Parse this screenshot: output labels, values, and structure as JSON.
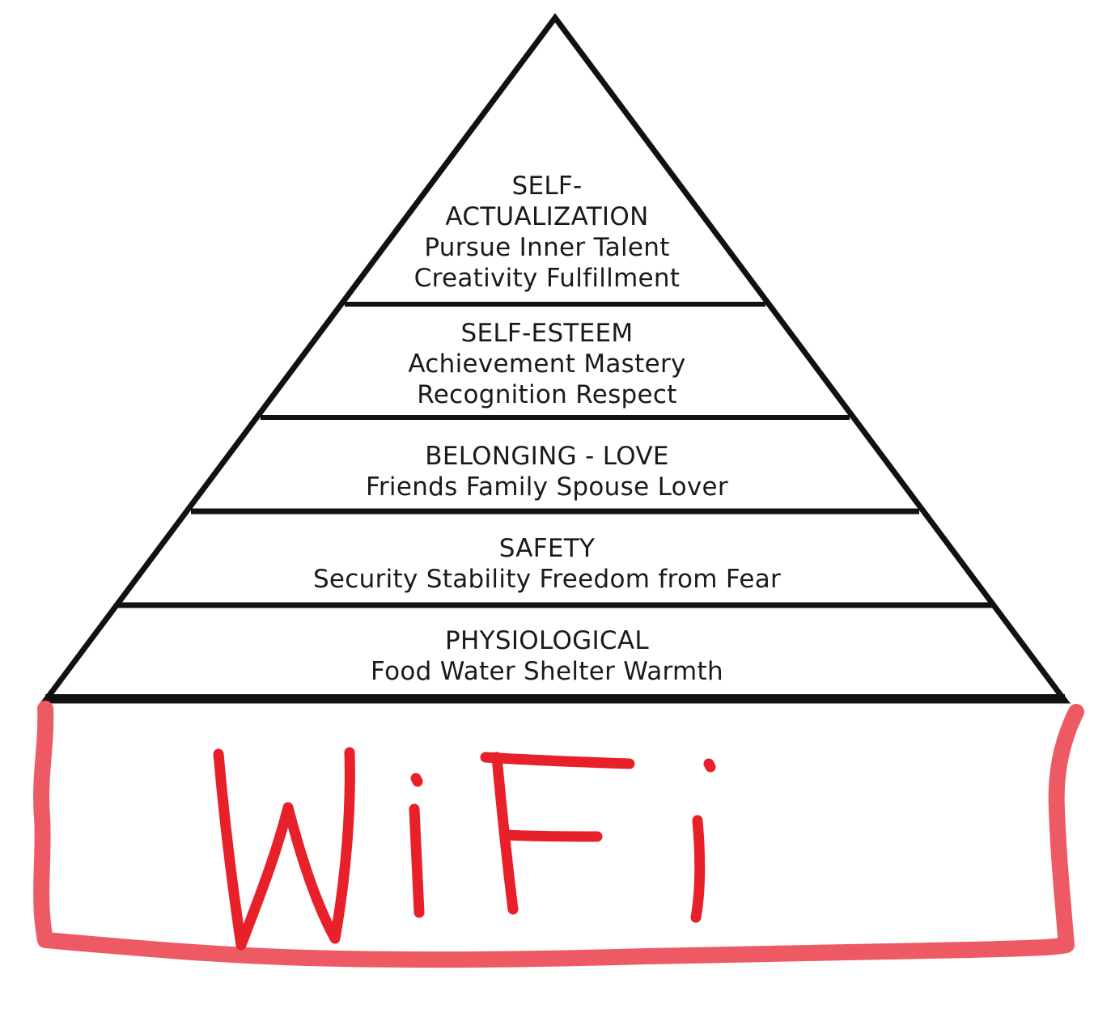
{
  "pyramid": {
    "tiers": [
      {
        "title_lines": [
          "SELF-",
          "ACTUALIZATION"
        ],
        "desc_lines": [
          "Pursue Inner Talent",
          "Creativity  Fulfillment"
        ]
      },
      {
        "title_lines": [
          "SELF-ESTEEM"
        ],
        "desc_lines": [
          "Achievement Mastery",
          "Recognition  Respect"
        ]
      },
      {
        "title_lines": [
          "BELONGING - LOVE"
        ],
        "desc_lines": [
          "Friends  Family  Spouse  Lover"
        ]
      },
      {
        "title_lines": [
          "SAFETY"
        ],
        "desc_lines": [
          "Security  Stability  Freedom from Fear"
        ]
      },
      {
        "title_lines": [
          "PHYSIOLOGICAL"
        ],
        "desc_lines": [
          "Food  Water  Shelter  Warmth"
        ]
      }
    ]
  },
  "base": {
    "handwritten_text": "WiFi",
    "color": "#e8202a",
    "box_color": "#ee5a63"
  },
  "colors": {
    "outline": "#111111",
    "text": "#1a1a1a"
  }
}
